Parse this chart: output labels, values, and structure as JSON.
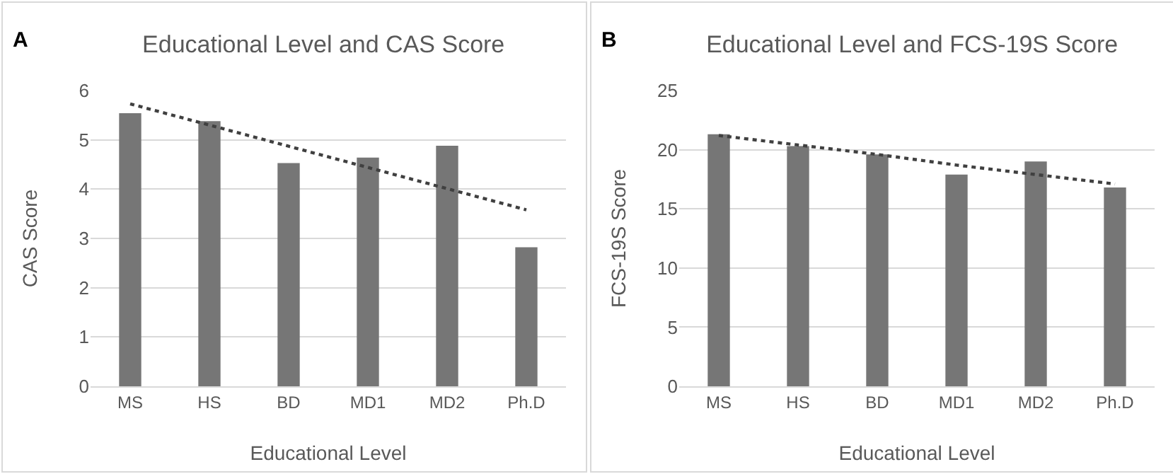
{
  "chart_data": [
    {
      "type": "bar",
      "title": "Educational Level and CAS Score",
      "xlabel": "Educational Level",
      "ylabel": "CAS Score",
      "annotations": [
        "A"
      ],
      "categories": [
        "MS",
        "HS",
        "BD",
        "MD1",
        "MD2",
        "Ph.D"
      ],
      "series": [
        {
          "color": "#767676",
          "values": [
            5.54,
            5.38,
            4.53,
            4.64,
            4.88,
            2.82
          ]
        },
        {
          "type": "line",
          "color": "#404040",
          "line_style": "dotted",
          "values": [
            5.73,
            5.3,
            4.87,
            4.44,
            4.01,
            3.58
          ]
        }
      ],
      "ylim": [
        0,
        6
      ],
      "yticks": [
        0,
        1,
        2,
        3,
        4,
        5,
        6
      ],
      "grid": "y"
    },
    {
      "type": "bar",
      "title": "Educational Level and FCS-19S Score",
      "xlabel": "Educational Level",
      "ylabel": "FCS-19S Score",
      "annotations": [
        "B"
      ],
      "categories": [
        "MS",
        "HS",
        "BD",
        "MD1",
        "MD2",
        "Ph.D"
      ],
      "series": [
        {
          "color": "#767676",
          "values": [
            21.3,
            20.3,
            19.6,
            17.9,
            19.0,
            16.8
          ]
        },
        {
          "type": "line",
          "color": "#404040",
          "line_style": "dotted",
          "values": [
            21.2,
            20.4,
            19.6,
            18.7,
            17.9,
            17.1
          ]
        }
      ],
      "ylim": [
        0,
        25
      ],
      "yticks": [
        0,
        5,
        10,
        15,
        20,
        25
      ],
      "grid": "y"
    }
  ]
}
